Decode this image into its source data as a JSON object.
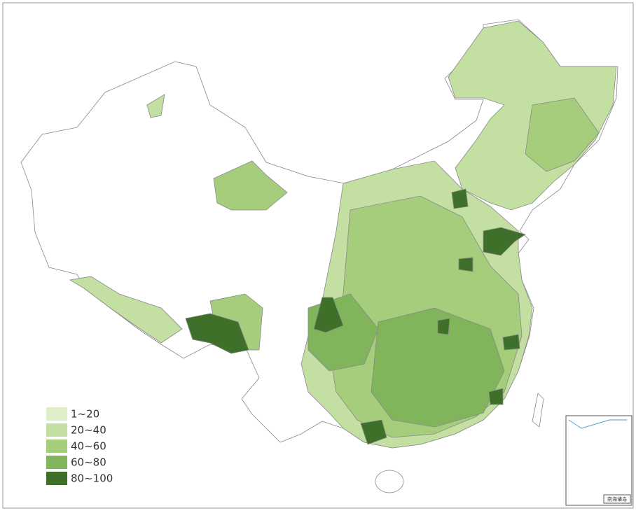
{
  "legend": {
    "items": [
      {
        "label": "1~20",
        "color": "#ddeec9"
      },
      {
        "label": "20~40",
        "color": "#c3e0a2"
      },
      {
        "label": "40~60",
        "color": "#a5cd7c"
      },
      {
        "label": "60~80",
        "color": "#80b55b"
      },
      {
        "label": "80~100",
        "color": "#3f7029"
      }
    ]
  },
  "inset": {
    "label": "南海诸岛"
  }
}
